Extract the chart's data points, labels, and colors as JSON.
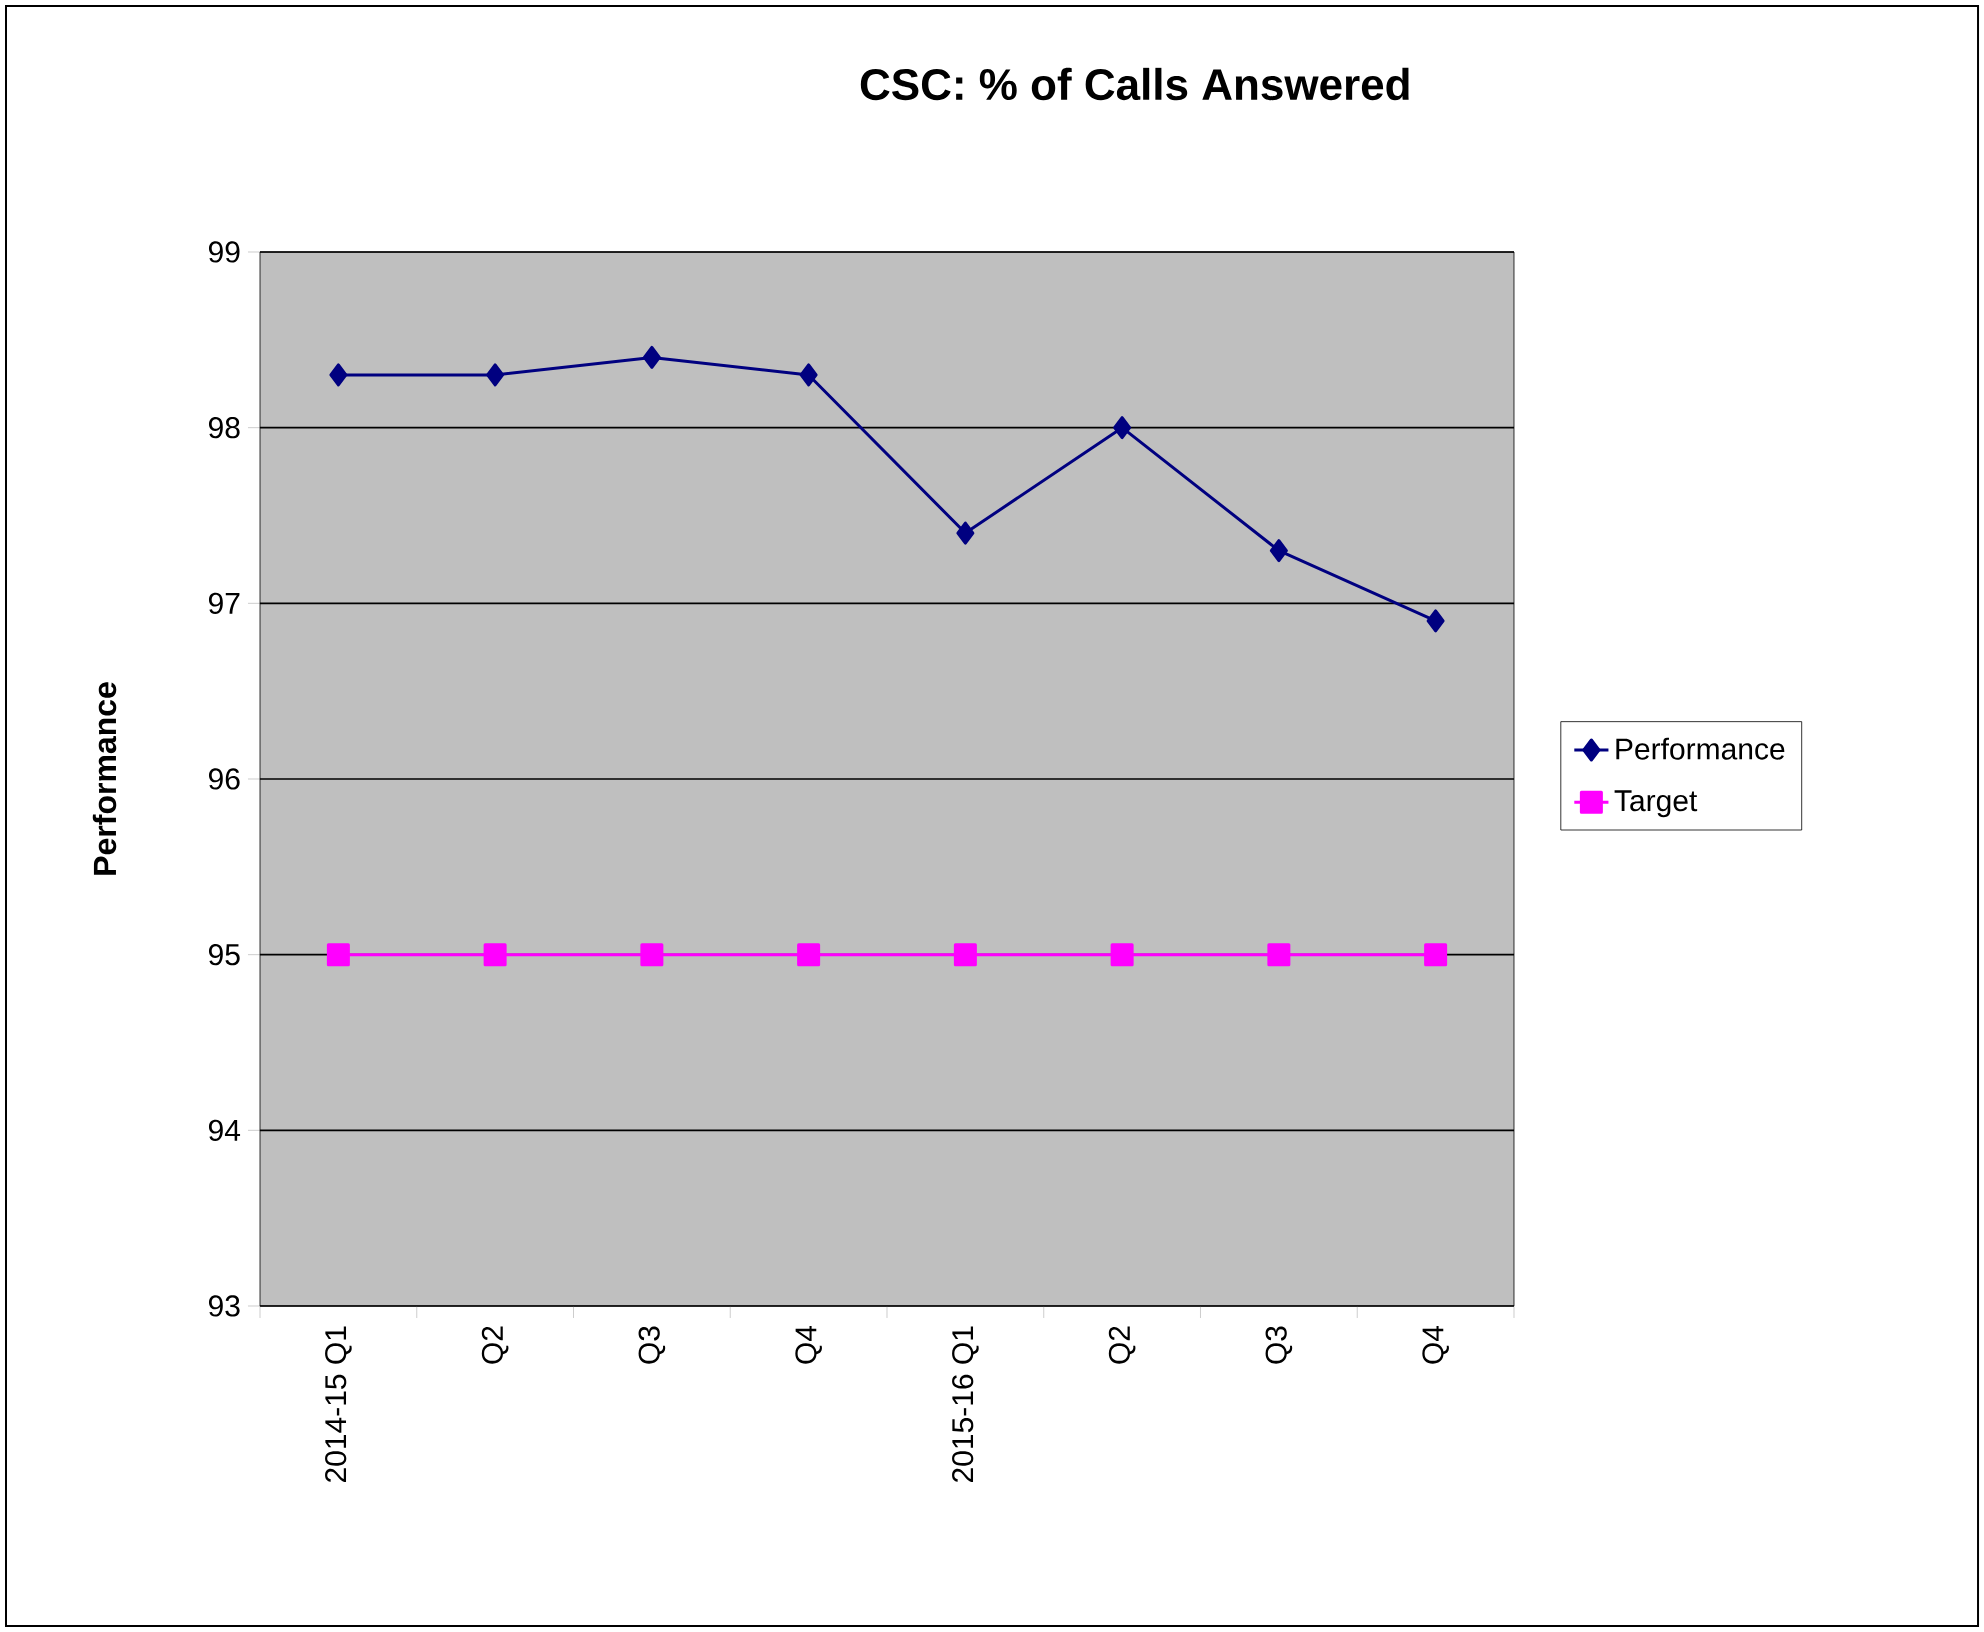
{
  "chart_data": {
    "type": "line",
    "title": "CSC: % of Calls Answered",
    "ylabel": "Performance",
    "categories": [
      "2014-15 Q1",
      "Q2",
      "Q3",
      "Q4",
      "2015-16 Q1",
      "Q2",
      "Q3",
      "Q4"
    ],
    "series": [
      {
        "name": "Performance",
        "color": "#000080",
        "marker": "diamond",
        "values": [
          98.3,
          98.3,
          98.4,
          98.3,
          97.4,
          98.0,
          97.3,
          96.9
        ]
      },
      {
        "name": "Target",
        "color": "#ff00ff",
        "marker": "square",
        "values": [
          95,
          95,
          95,
          95,
          95,
          95,
          95,
          95
        ]
      }
    ],
    "ylim": [
      93,
      99
    ],
    "yticks": [
      93,
      94,
      95,
      96,
      97,
      98,
      99
    ],
    "grid": "y",
    "legend": "right"
  }
}
